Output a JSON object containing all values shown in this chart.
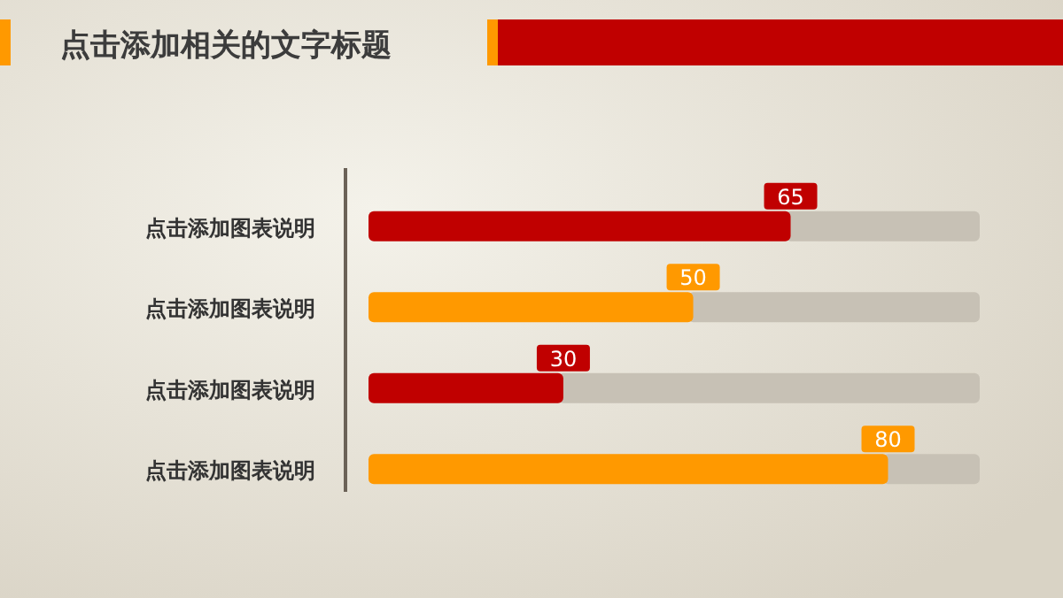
{
  "chart_data": {
    "type": "bar",
    "orientation": "horizontal",
    "title": "点击添加相关的文字标题",
    "categories": [
      "点击添加图表说明",
      "点击添加图表说明",
      "点击添加图表说明",
      "点击添加图表说明"
    ],
    "values": [
      65,
      50,
      30,
      80
    ],
    "colors": [
      "#c00000",
      "#ff9900",
      "#c00000",
      "#ff9900"
    ],
    "data_labels": true
  }
}
